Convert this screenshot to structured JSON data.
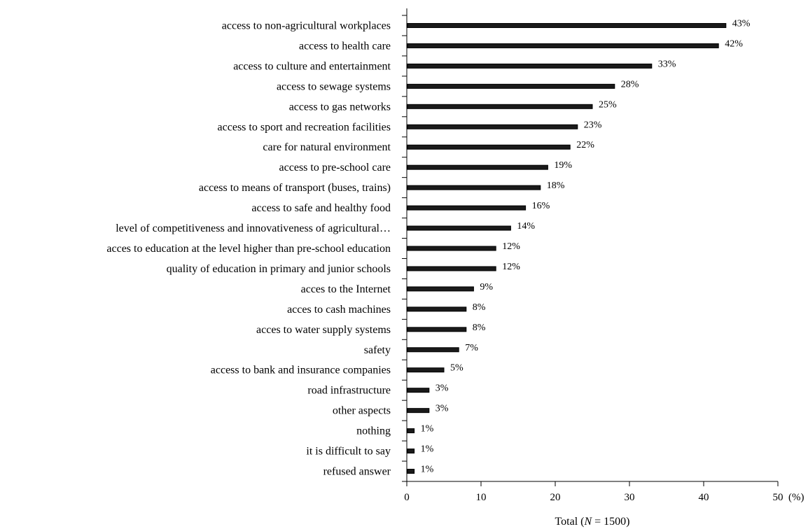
{
  "chart_data": {
    "type": "bar",
    "orientation": "horizontal",
    "categories": [
      "access to non-agricultural workplaces",
      "access to health care",
      "access to culture and entertainment",
      "access to sewage systems",
      "access to gas networks",
      "access to sport and recreation facilities",
      "care for natural environment",
      "access to pre-school care",
      "access to means of transport (buses, trains)",
      "access to safe and healthy food",
      "level of competitiveness and innovativeness of agricultural…",
      "acces to education at the level higher than pre-school education",
      "quality of education in primary and junior schools",
      "acces to the Internet",
      "acces to cash machines",
      "acces to water supply systems",
      "safety",
      "access to bank and insurance companies",
      "road infrastructure",
      "other aspects",
      "nothing",
      "it is difficult to say",
      "refused answer"
    ],
    "values": [
      43,
      42,
      33,
      28,
      25,
      23,
      22,
      19,
      18,
      16,
      14,
      12,
      12,
      9,
      8,
      8,
      7,
      5,
      3,
      3,
      1,
      1,
      1
    ],
    "value_labels": [
      "43%",
      "42%",
      "33%",
      "28%",
      "25%",
      "23%",
      "22%",
      "19%",
      "18%",
      "16%",
      "14%",
      "12%",
      "12%",
      "9%",
      "8%",
      "8%",
      "7%",
      "5%",
      "3%",
      "3%",
      "1%",
      "1%",
      "1%"
    ],
    "xlim": [
      0,
      50
    ],
    "xticks": [
      0,
      10,
      20,
      30,
      40,
      50
    ],
    "xtick_labels": [
      "0",
      "10",
      "20",
      "30",
      "40",
      "50"
    ],
    "x_unit_label": "(%)",
    "xlabel_prefix": "Total  (",
    "xlabel_italic": "N",
    "xlabel_suffix": " = 1500)",
    "grid": false,
    "legend": "none",
    "bar_color": "#1a1a1a"
  }
}
